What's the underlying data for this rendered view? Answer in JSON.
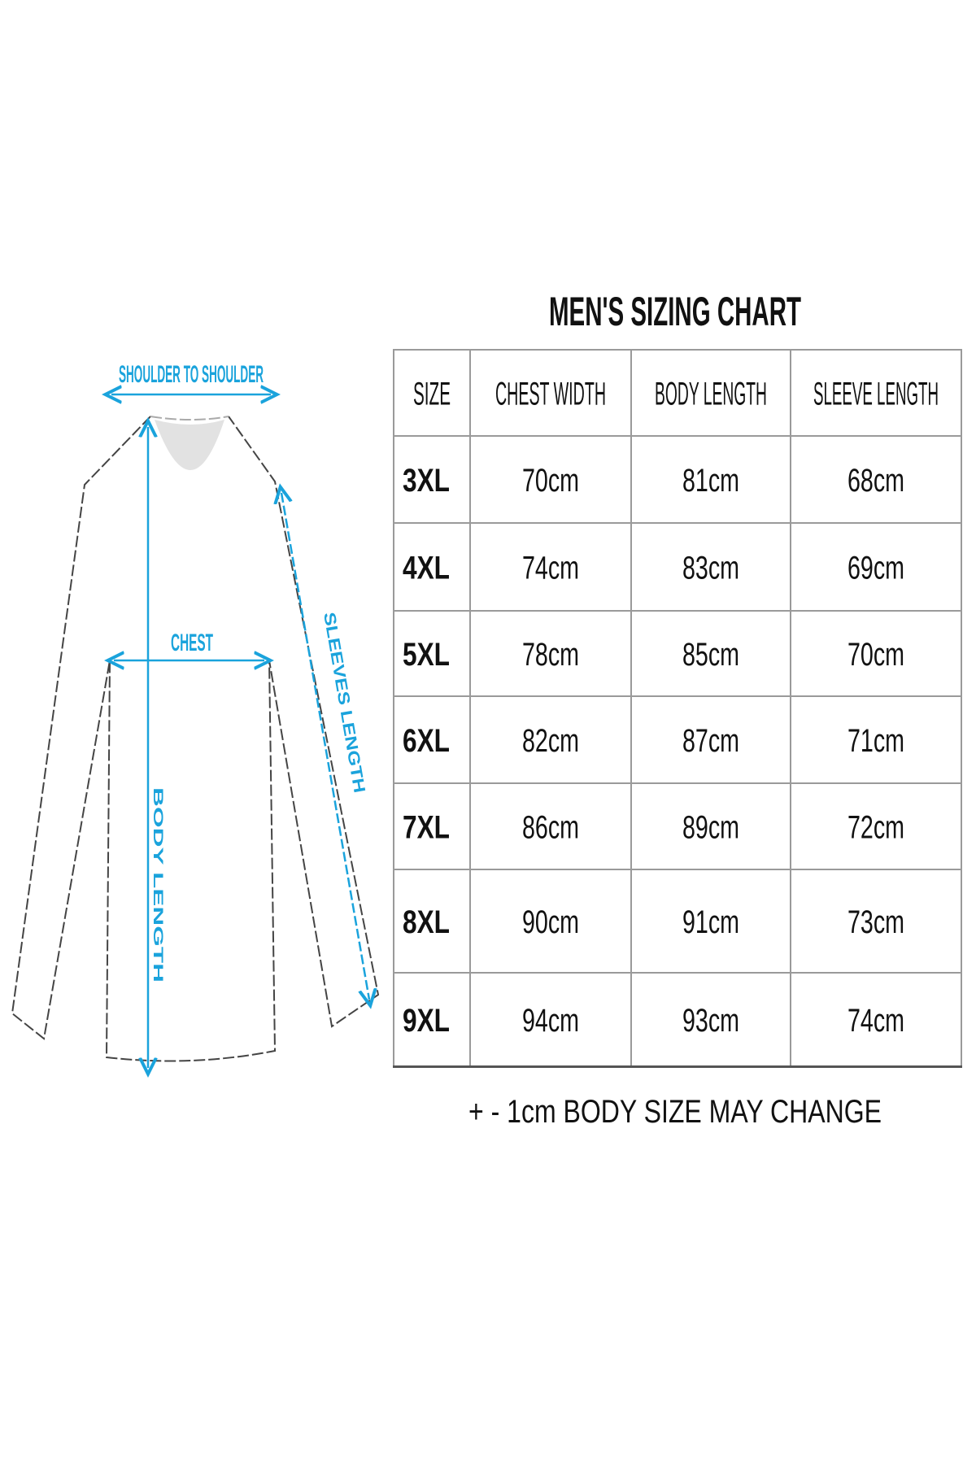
{
  "diagram": {
    "labels": {
      "shoulder": "SHOULDER TO SHOULDER",
      "chest": "CHEST",
      "body_length": "BODY LENGTH",
      "sleeve_length": "SLEEVES LENGTH"
    },
    "accent_color": "#1aa3dc"
  },
  "chart": {
    "title": "MEN'S SIZING CHART",
    "headers": [
      "SIZE",
      "CHEST WIDTH",
      "BODY LENGTH",
      "SLEEVE LENGTH"
    ],
    "rows": [
      [
        "3XL",
        "70cm",
        "81cm",
        "68cm"
      ],
      [
        "4XL",
        "74cm",
        "83cm",
        "69cm"
      ],
      [
        "5XL",
        "78cm",
        "85cm",
        "70cm"
      ],
      [
        "6XL",
        "82cm",
        "87cm",
        "71cm"
      ],
      [
        "7XL",
        "86cm",
        "89cm",
        "72cm"
      ],
      [
        "8XL",
        "90cm",
        "91cm",
        "73cm"
      ],
      [
        "9XL",
        "94cm",
        "93cm",
        "74cm"
      ]
    ],
    "note": "+ - 1cm BODY SIZE MAY CHANGE"
  }
}
